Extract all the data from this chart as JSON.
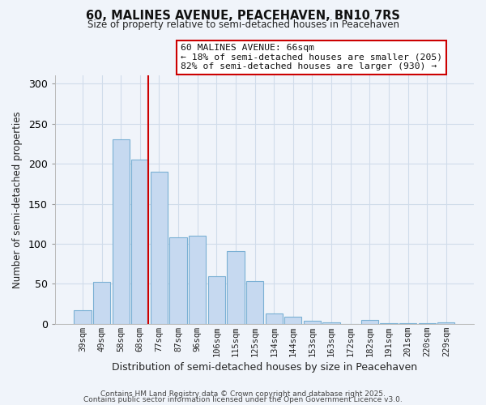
{
  "title": "60, MALINES AVENUE, PEACEHAVEN, BN10 7RS",
  "subtitle": "Size of property relative to semi-detached houses in Peacehaven",
  "xlabel": "Distribution of semi-detached houses by size in Peacehaven",
  "ylabel": "Number of semi-detached properties",
  "bar_color": "#c6d9f0",
  "bar_edge_color": "#7ab0d4",
  "categories": [
    "39sqm",
    "49sqm",
    "58sqm",
    "68sqm",
    "77sqm",
    "87sqm",
    "96sqm",
    "106sqm",
    "115sqm",
    "125sqm",
    "134sqm",
    "144sqm",
    "153sqm",
    "163sqm",
    "172sqm",
    "182sqm",
    "191sqm",
    "201sqm",
    "220sqm",
    "229sqm"
  ],
  "values": [
    17,
    52,
    230,
    205,
    190,
    108,
    110,
    59,
    91,
    53,
    13,
    9,
    4,
    2,
    0,
    5,
    1,
    1,
    1,
    2
  ],
  "vline_index": 3,
  "vline_color": "#cc0000",
  "ylim": [
    0,
    310
  ],
  "yticks": [
    0,
    50,
    100,
    150,
    200,
    250,
    300
  ],
  "annotation_title": "60 MALINES AVENUE: 66sqm",
  "annotation_line1": "← 18% of semi-detached houses are smaller (205)",
  "annotation_line2": "82% of semi-detached houses are larger (930) →",
  "footer1": "Contains HM Land Registry data © Crown copyright and database right 2025.",
  "footer2": "Contains public sector information licensed under the Open Government Licence v3.0.",
  "background_color": "#f0f4fa",
  "grid_color": "#d0dcea"
}
